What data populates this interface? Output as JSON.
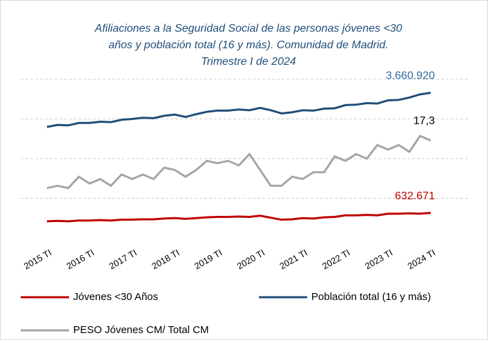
{
  "chart_data": {
    "type": "line",
    "title": [
      "Afiliaciones a la Seguridad Social de las personas jóvenes <30",
      "años y población total (16 y más). Comunidad de Madrid.",
      "Trimestre I de 2024"
    ],
    "categories": [
      "2015 TI",
      null,
      null,
      null,
      "2016 TI",
      null,
      null,
      null,
      "2017 TI",
      null,
      null,
      null,
      "2018 TI",
      null,
      null,
      null,
      "2019 TI",
      null,
      null,
      null,
      "2020 TI",
      null,
      null,
      null,
      "2021 TI",
      null,
      null,
      null,
      "2022 TI",
      null,
      null,
      null,
      "2023 TI",
      null,
      null,
      null,
      "2024 TI"
    ],
    "ylim": [
      0,
      4000000
    ],
    "yticks": [
      1000000,
      2000000,
      3000000,
      4000000
    ],
    "y2lim": [
      13,
      20
    ],
    "grid": true,
    "legend": "bottom",
    "series": [
      {
        "name": "Jóvenes <30 Años",
        "color": "#c00000",
        "values": [
          420000,
          430000,
          420000,
          440000,
          440000,
          450000,
          440000,
          460000,
          460000,
          470000,
          470000,
          490000,
          500000,
          480000,
          500000,
          520000,
          530000,
          530000,
          540000,
          530000,
          560000,
          510000,
          460000,
          470000,
          500000,
          490000,
          520000,
          530000,
          570000,
          570000,
          580000,
          570000,
          610000,
          610000,
          620000,
          610000,
          632671
        ],
        "value_labels": [
          null,
          null,
          null,
          null,
          null,
          null,
          null,
          null,
          null,
          null,
          null,
          null,
          null,
          null,
          null,
          null,
          null,
          null,
          null,
          null,
          null,
          null,
          null,
          null,
          null,
          null,
          null,
          null,
          null,
          null,
          null,
          null,
          null,
          null,
          null,
          null,
          "632.671"
        ],
        "label_color": "#c00000"
      },
      {
        "name": "Población total (16 y más)",
        "color": "#1f4e79",
        "values": [
          2800000,
          2850000,
          2840000,
          2900000,
          2900000,
          2930000,
          2920000,
          2980000,
          3000000,
          3030000,
          3020000,
          3080000,
          3110000,
          3050000,
          3120000,
          3180000,
          3210000,
          3210000,
          3240000,
          3220000,
          3280000,
          3220000,
          3140000,
          3170000,
          3220000,
          3210000,
          3260000,
          3270000,
          3350000,
          3360000,
          3400000,
          3390000,
          3470000,
          3480000,
          3540000,
          3620000,
          3660920
        ],
        "value_labels": [
          null,
          null,
          null,
          null,
          null,
          null,
          null,
          null,
          null,
          null,
          null,
          null,
          null,
          null,
          null,
          null,
          null,
          null,
          null,
          null,
          null,
          null,
          null,
          null,
          null,
          null,
          null,
          null,
          null,
          null,
          null,
          null,
          null,
          null,
          null,
          null,
          "3.660.920"
        ],
        "label_color": "#2e6a9e"
      },
      {
        "name": "PESO Jóvenes CM/ Total CM",
        "color": "#a5a5a5",
        "axis": "y2",
        "values": [
          15.2,
          15.3,
          15.2,
          15.7,
          15.4,
          15.6,
          15.3,
          15.8,
          15.6,
          15.8,
          15.6,
          16.1,
          16.0,
          15.7,
          16.0,
          16.4,
          16.3,
          16.4,
          16.2,
          16.7,
          16.0,
          15.3,
          15.3,
          15.7,
          15.6,
          15.9,
          15.9,
          16.6,
          16.4,
          16.7,
          16.5,
          17.1,
          16.9,
          17.1,
          16.8,
          17.5,
          17.3
        ],
        "value_labels": [
          null,
          null,
          null,
          null,
          null,
          null,
          null,
          null,
          null,
          null,
          null,
          null,
          null,
          null,
          null,
          null,
          null,
          null,
          null,
          null,
          null,
          null,
          null,
          null,
          null,
          null,
          null,
          null,
          null,
          null,
          null,
          null,
          null,
          null,
          null,
          null,
          "17,3"
        ],
        "label_color": "#000000"
      }
    ]
  }
}
